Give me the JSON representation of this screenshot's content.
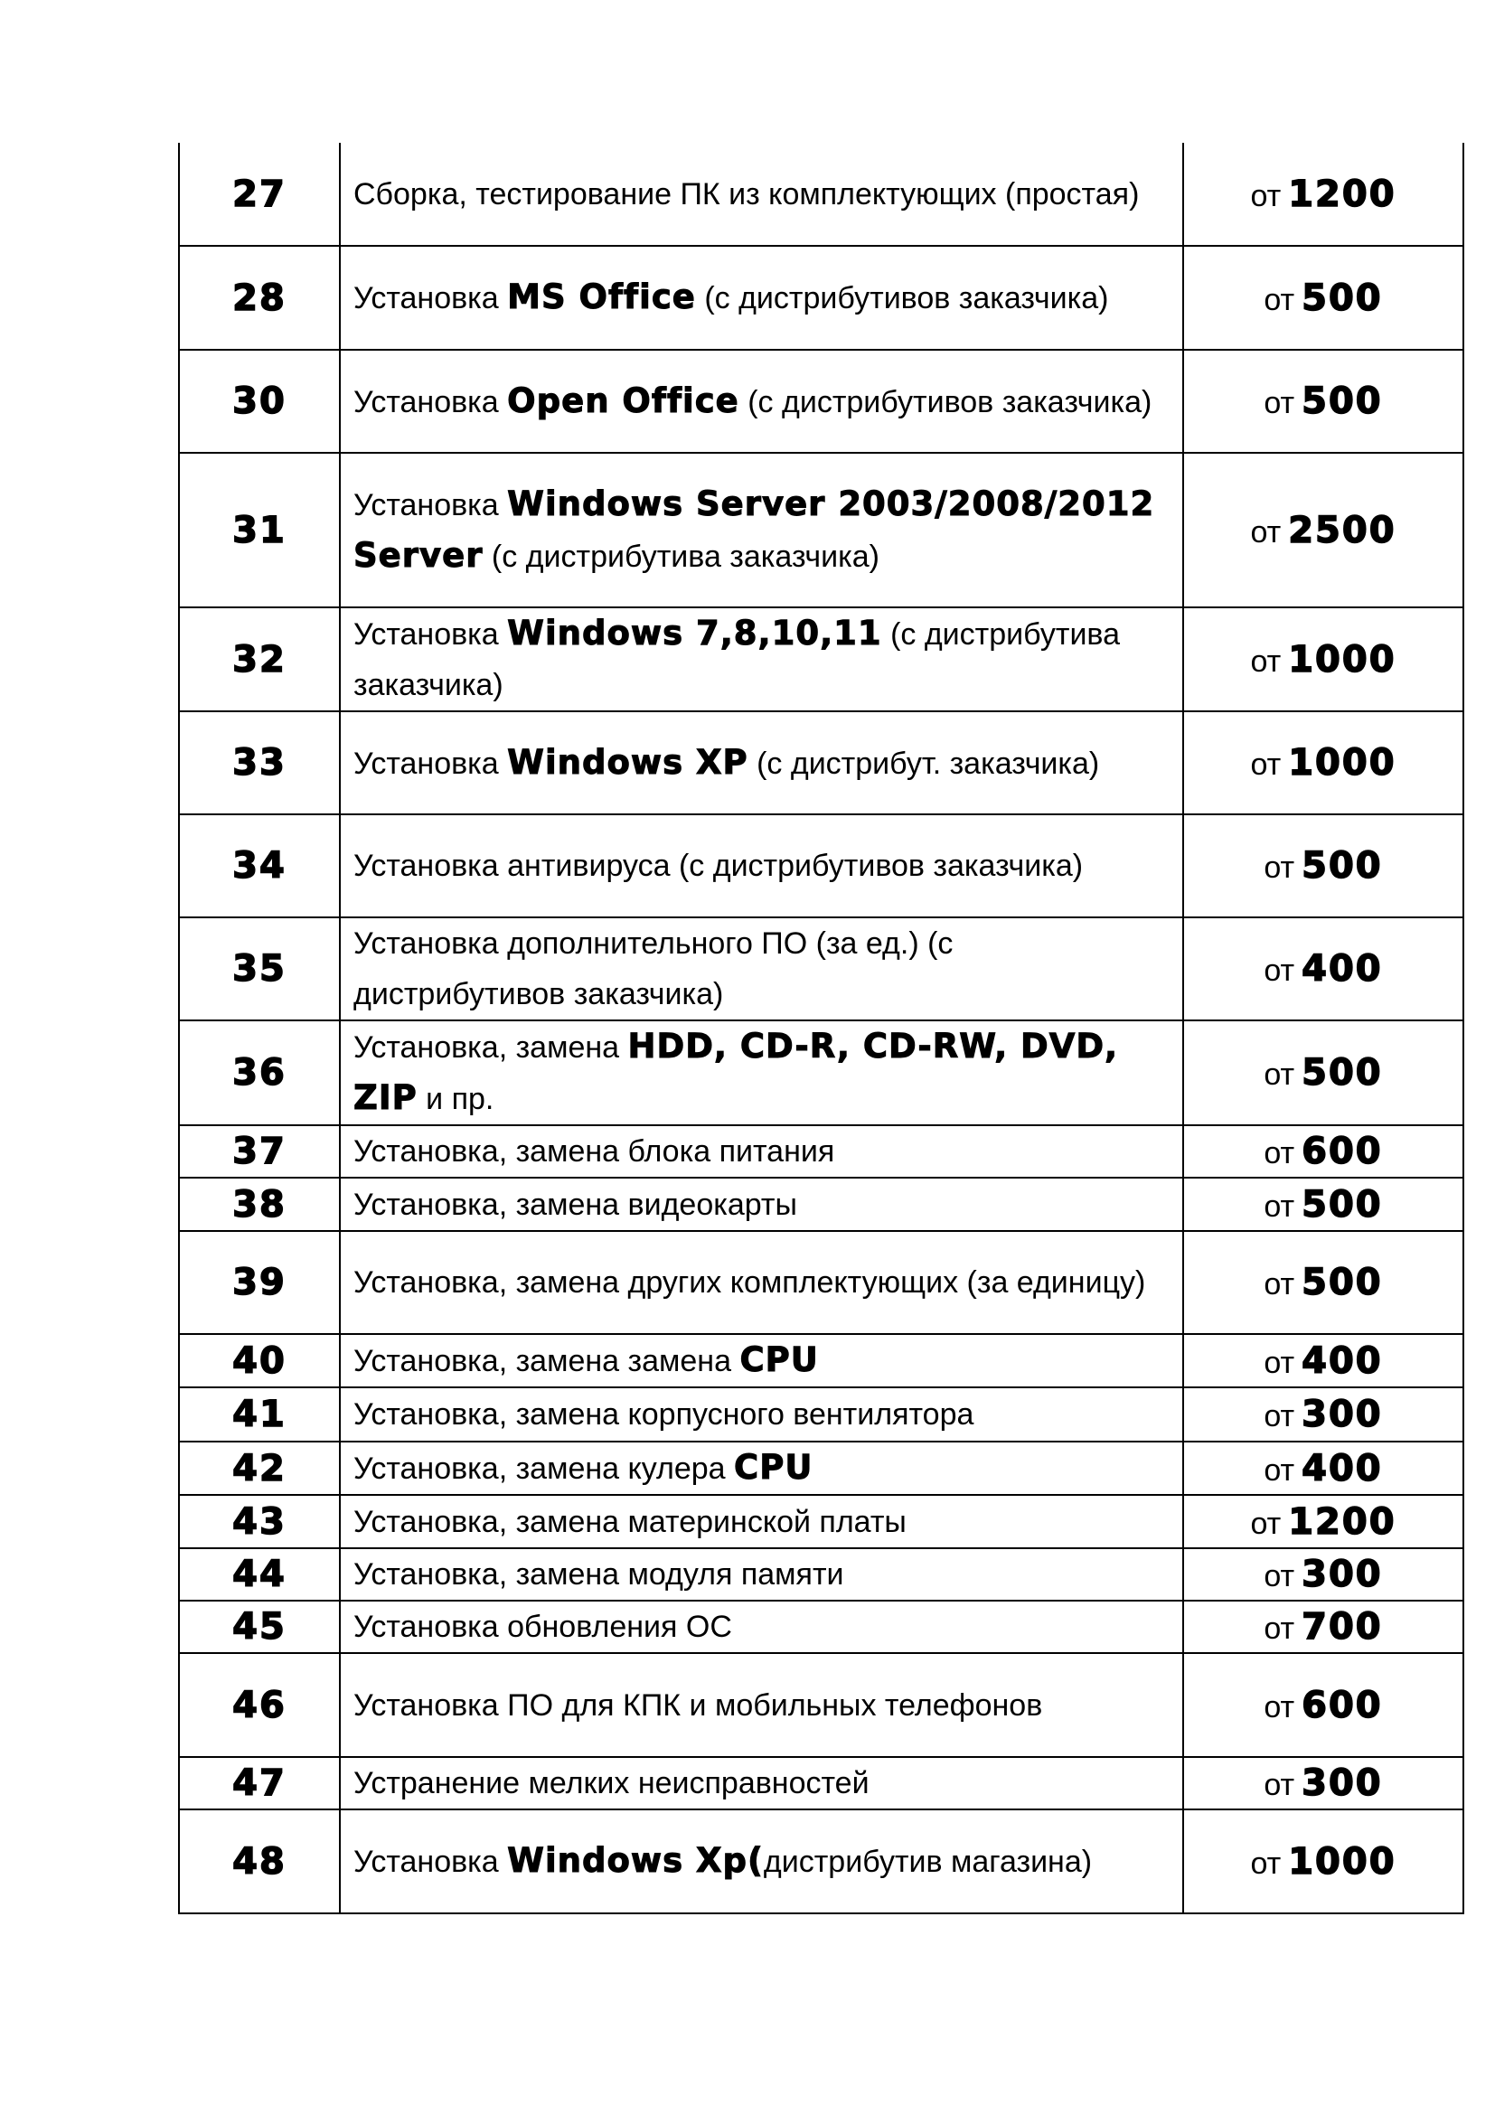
{
  "price_prefix": "от",
  "rows": [
    {
      "num": "27",
      "desc": [
        {
          "t": "Сборка, тестирование ПК из комплектующих (простая)"
        }
      ],
      "price": "1200"
    },
    {
      "num": "28",
      "desc": [
        {
          "t": "Установка "
        },
        {
          "t": "MS Office",
          "b": true
        },
        {
          "t": " (с дистрибутивов заказчика)"
        }
      ],
      "price": "500"
    },
    {
      "num": "30",
      "desc": [
        {
          "t": "Установка "
        },
        {
          "t": "Open Office",
          "b": true
        },
        {
          "t": " (с дистрибутивов заказчика)"
        }
      ],
      "price": "500"
    },
    {
      "num": "31",
      "desc": [
        {
          "t": "Установка "
        },
        {
          "t": "Windows Server 2003/2008/2012 Server",
          "b": true
        },
        {
          "t": " (с дистрибутива заказчика)"
        }
      ],
      "price": "2500"
    },
    {
      "num": "32",
      "desc": [
        {
          "t": "Установка "
        },
        {
          "t": "Windows 7,8,10,11",
          "b": true
        },
        {
          "t": " (с дистрибутива заказчика)"
        }
      ],
      "price": "1000"
    },
    {
      "num": "33",
      "desc": [
        {
          "t": "Установка "
        },
        {
          "t": "Windows XP",
          "b": true
        },
        {
          "t": " (с дистрибут. заказчика)"
        }
      ],
      "price": "1000"
    },
    {
      "num": "34",
      "desc": [
        {
          "t": "Установка антивируса (с дистрибутивов заказчика)"
        }
      ],
      "price": "500"
    },
    {
      "num": "35",
      "desc": [
        {
          "t": "Установка дополнительного ПО (за ед.) (с дистрибутивов заказчика)"
        }
      ],
      "price": "400"
    },
    {
      "num": "36",
      "desc": [
        {
          "t": "Установка, замена "
        },
        {
          "t": "HDD, CD-R, CD-RW, DVD, ZIP",
          "b": true
        },
        {
          "t": " и пр."
        }
      ],
      "price": "500"
    },
    {
      "num": "37",
      "desc": [
        {
          "t": "Установка, замена блока питания"
        }
      ],
      "price": "600"
    },
    {
      "num": "38",
      "desc": [
        {
          "t": "Установка, замена видеокарты"
        }
      ],
      "price": "500"
    },
    {
      "num": "39",
      "desc": [
        {
          "t": "Установка, замена других комплектующих (за единицу)"
        }
      ],
      "price": "500"
    },
    {
      "num": "40",
      "desc": [
        {
          "t": "Установка, замена замена "
        },
        {
          "t": "CPU",
          "b": true
        }
      ],
      "price": "400"
    },
    {
      "num": "41",
      "desc": [
        {
          "t": "Установка, замена корпусного вентилятора"
        }
      ],
      "price": "300"
    },
    {
      "num": "42",
      "desc": [
        {
          "t": "Установка, замена кулера "
        },
        {
          "t": "CPU",
          "b": true
        }
      ],
      "price": "400"
    },
    {
      "num": "43",
      "desc": [
        {
          "t": "Установка, замена материнской платы"
        }
      ],
      "price": "1200"
    },
    {
      "num": "44",
      "desc": [
        {
          "t": "Установка, замена модуля памяти"
        }
      ],
      "price": "300"
    },
    {
      "num": "45",
      "desc": [
        {
          "t": "Установка обновления ОС"
        }
      ],
      "price": "700"
    },
    {
      "num": "46",
      "desc": [
        {
          "t": "Установка ПО для КПК и мобильных телефонов"
        }
      ],
      "price": "600"
    },
    {
      "num": "47",
      "desc": [
        {
          "t": "Устранение мелких неисправностей"
        }
      ],
      "price": "300"
    },
    {
      "num": "48",
      "desc": [
        {
          "t": "Установка "
        },
        {
          "t": "Windows Xp(",
          "b": true
        },
        {
          "t": "дистрибутив магазина)"
        }
      ],
      "price": "1000"
    }
  ]
}
